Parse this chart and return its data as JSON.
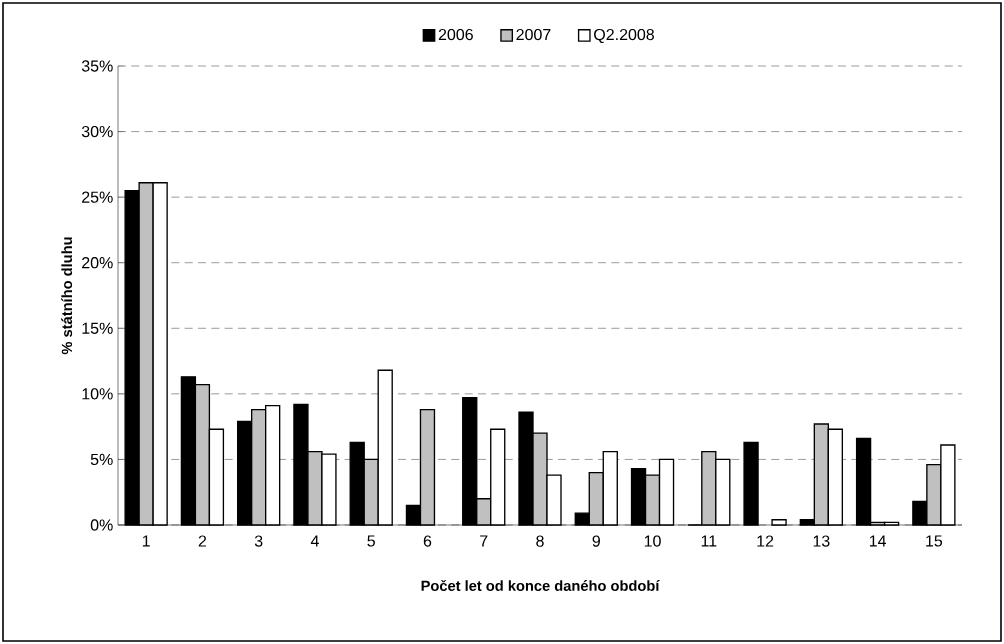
{
  "chart_data": {
    "type": "bar",
    "xlabel": "Počet let od konce daného období",
    "ylabel": "% státního dluhu",
    "categories": [
      "1",
      "2",
      "3",
      "4",
      "5",
      "6",
      "7",
      "8",
      "9",
      "10",
      "11",
      "12",
      "13",
      "14",
      "15"
    ],
    "series": [
      {
        "name": "2006",
        "color": "#000000",
        "values": [
          25.5,
          11.3,
          7.9,
          9.2,
          6.3,
          1.5,
          9.7,
          8.6,
          0.9,
          4.3,
          0,
          6.3,
          0.4,
          6.6,
          1.8
        ]
      },
      {
        "name": "2007",
        "color": "#c0c0c0",
        "values": [
          26.1,
          10.7,
          8.8,
          5.6,
          5.0,
          8.8,
          2.0,
          7.0,
          4.0,
          3.8,
          5.6,
          null,
          7.7,
          0.2,
          4.6
        ]
      },
      {
        "name": "Q2.2008",
        "color": "#ffffff",
        "values": [
          26.1,
          7.3,
          9.1,
          5.4,
          11.8,
          null,
          7.3,
          3.8,
          5.6,
          5.0,
          5.0,
          0.4,
          7.3,
          0.2,
          6.1
        ]
      }
    ],
    "ylim": [
      0,
      35
    ],
    "yticks": [
      {
        "value": 0,
        "label": "0%"
      },
      {
        "value": 5,
        "label": "5%"
      },
      {
        "value": 10,
        "label": "10%"
      },
      {
        "value": 15,
        "label": "15%"
      },
      {
        "value": 20,
        "label": "20%"
      },
      {
        "value": 25,
        "label": "25%"
      },
      {
        "value": 30,
        "label": "30%"
      },
      {
        "value": 35,
        "label": "35%"
      }
    ],
    "grid": "y",
    "legend": "top"
  }
}
